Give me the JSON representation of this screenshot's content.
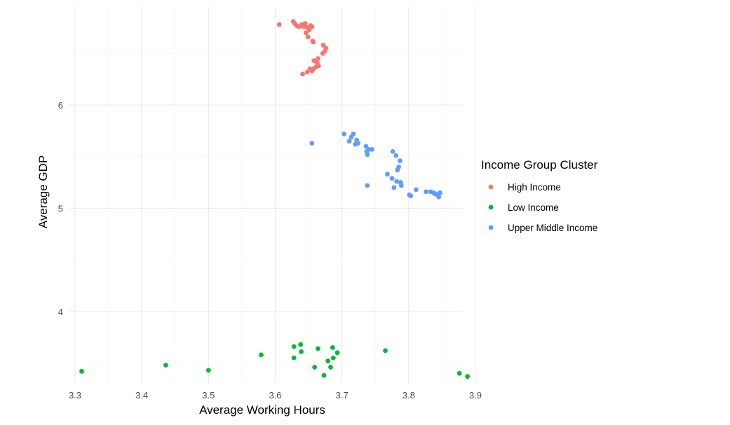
{
  "chart_data": {
    "type": "scatter",
    "title": "",
    "xlabel": "Average Working Hours",
    "ylabel": "Average GDP",
    "xlim": [
      3.3,
      3.9
    ],
    "ylim": [
      3.3,
      6.95
    ],
    "x_ticks": [
      "3.3",
      "3.4",
      "3.5",
      "3.6",
      "3.7",
      "3.8",
      "3.9"
    ],
    "y_ticks": [
      "4",
      "5",
      "6"
    ],
    "grid": true,
    "legend": {
      "title": "Income Group Cluster",
      "placement": "right"
    },
    "series": [
      {
        "name": "High Income",
        "color": "#F8766D",
        "points": [
          [
            3.606,
            6.78
          ],
          [
            3.627,
            6.81
          ],
          [
            3.629,
            6.79
          ],
          [
            3.632,
            6.77
          ],
          [
            3.636,
            6.76
          ],
          [
            3.64,
            6.78
          ],
          [
            3.643,
            6.76
          ],
          [
            3.645,
            6.79
          ],
          [
            3.648,
            6.75
          ],
          [
            3.651,
            6.73
          ],
          [
            3.653,
            6.77
          ],
          [
            3.655,
            6.76
          ],
          [
            3.646,
            6.7
          ],
          [
            3.649,
            6.66
          ],
          [
            3.656,
            6.62
          ],
          [
            3.657,
            6.61
          ],
          [
            3.672,
            6.58
          ],
          [
            3.676,
            6.55
          ],
          [
            3.674,
            6.52
          ],
          [
            3.671,
            6.5
          ],
          [
            3.664,
            6.45
          ],
          [
            3.658,
            6.43
          ],
          [
            3.663,
            6.41
          ],
          [
            3.665,
            6.38
          ],
          [
            3.661,
            6.37
          ],
          [
            3.657,
            6.35
          ],
          [
            3.652,
            6.35
          ],
          [
            3.655,
            6.33
          ],
          [
            3.648,
            6.32
          ],
          [
            3.641,
            6.3
          ]
        ]
      },
      {
        "name": "Low Income",
        "color": "#00BA38",
        "points": [
          [
            3.31,
            3.42
          ],
          [
            3.436,
            3.48
          ],
          [
            3.5,
            3.43
          ],
          [
            3.579,
            3.58
          ],
          [
            3.628,
            3.66
          ],
          [
            3.628,
            3.55
          ],
          [
            3.638,
            3.68
          ],
          [
            3.639,
            3.61
          ],
          [
            3.659,
            3.46
          ],
          [
            3.664,
            3.64
          ],
          [
            3.673,
            3.38
          ],
          [
            3.679,
            3.52
          ],
          [
            3.683,
            3.46
          ],
          [
            3.686,
            3.65
          ],
          [
            3.687,
            3.55
          ],
          [
            3.693,
            3.6
          ],
          [
            3.765,
            3.62
          ],
          [
            3.876,
            3.4
          ],
          [
            3.888,
            3.37
          ]
        ]
      },
      {
        "name": "Upper Middle Income",
        "color": "#619CFF",
        "points": [
          [
            3.655,
            5.63
          ],
          [
            3.703,
            5.72
          ],
          [
            3.711,
            5.65
          ],
          [
            3.714,
            5.69
          ],
          [
            3.717,
            5.72
          ],
          [
            3.72,
            5.62
          ],
          [
            3.722,
            5.66
          ],
          [
            3.724,
            5.63
          ],
          [
            3.736,
            5.6
          ],
          [
            3.737,
            5.55
          ],
          [
            3.738,
            5.52
          ],
          [
            3.74,
            5.57
          ],
          [
            3.745,
            5.57
          ],
          [
            3.738,
            5.22
          ],
          [
            3.768,
            5.33
          ],
          [
            3.775,
            5.29
          ],
          [
            3.776,
            5.55
          ],
          [
            3.778,
            5.2
          ],
          [
            3.781,
            5.51
          ],
          [
            3.782,
            5.26
          ],
          [
            3.783,
            5.37
          ],
          [
            3.785,
            5.4
          ],
          [
            3.787,
            5.46
          ],
          [
            3.788,
            5.25
          ],
          [
            3.789,
            5.22
          ],
          [
            3.801,
            5.13
          ],
          [
            3.803,
            5.12
          ],
          [
            3.811,
            5.18
          ],
          [
            3.826,
            5.16
          ],
          [
            3.833,
            5.16
          ],
          [
            3.837,
            5.15
          ],
          [
            3.84,
            5.14
          ],
          [
            3.843,
            5.13
          ],
          [
            3.845,
            5.11
          ],
          [
            3.847,
            5.15
          ]
        ]
      }
    ]
  }
}
